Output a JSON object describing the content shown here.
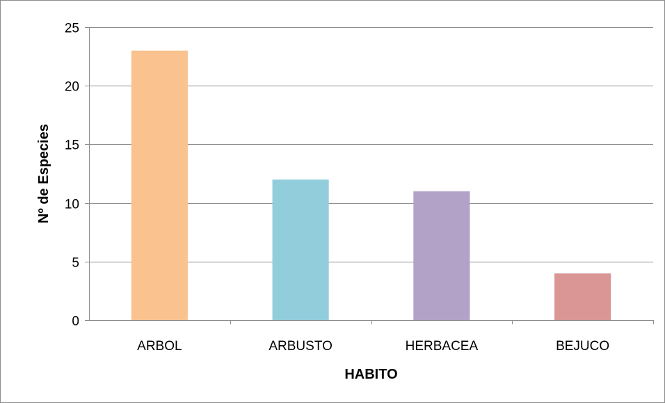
{
  "chart_data": {
    "type": "bar",
    "categories": [
      "ARBOL",
      "ARBUSTO",
      "HERBACEA",
      "BEJUCO"
    ],
    "values": [
      23,
      12,
      11,
      4
    ],
    "colors": [
      "#F9C28F",
      "#92CDDC",
      "#B2A2C7",
      "#D99694"
    ],
    "xlabel": "HABITO",
    "ylabel": "Nº de Especies",
    "ylim": [
      0,
      25
    ],
    "yticks": [
      0,
      5,
      10,
      15,
      20,
      25
    ],
    "grid": true,
    "gridline_color": "#8c8c8c"
  }
}
